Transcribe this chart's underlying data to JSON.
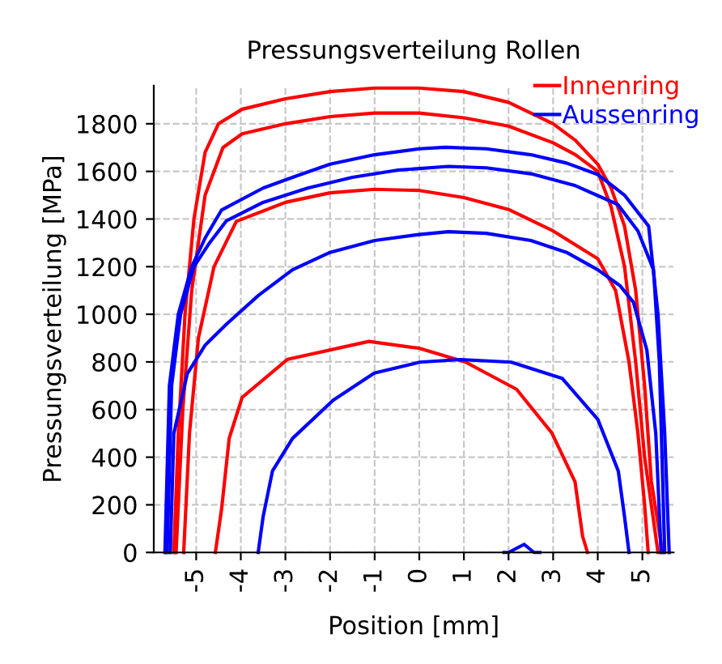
{
  "chart_data": {
    "type": "line",
    "title": "Pressungsverteilung Rollen",
    "xlabel": "Position [mm]",
    "ylabel": "Pressungsverteilung [MPa]",
    "xlim": [
      -5.95,
      5.7
    ],
    "ylim": [
      0,
      1960
    ],
    "xticks": [
      -5,
      -4,
      -3,
      -2,
      -1,
      0,
      1,
      2,
      3,
      4,
      5
    ],
    "yticks": [
      0,
      200,
      400,
      600,
      800,
      1000,
      1200,
      1400,
      1600,
      1800
    ],
    "grid": true,
    "legend": "top right",
    "series": [
      {
        "name": "Innenring",
        "color": "#ff0000",
        "x": [
          -5.5,
          -5.4,
          -5.25,
          -5.05,
          -4.8,
          -4.5,
          -3.97,
          -3,
          -2,
          -1,
          0,
          1,
          2,
          3,
          3.5,
          4.0,
          4.3,
          4.6,
          4.85,
          5.05,
          5.2,
          5.45
        ],
        "values": [
          0,
          500,
          1000,
          1400,
          1680,
          1800,
          1861,
          1905,
          1935,
          1950,
          1950,
          1935,
          1890,
          1800,
          1730,
          1630,
          1530,
          1370,
          1100,
          700,
          300,
          0
        ]
      },
      {
        "color": "#ff0000",
        "x": [
          -5.45,
          -5.3,
          -5.1,
          -4.8,
          -4.4,
          -3.97,
          -3,
          -2,
          -1,
          0,
          1,
          2,
          3,
          3.5,
          4.0,
          4.3,
          4.6,
          4.85,
          5.05,
          5.35
        ],
        "values": [
          0,
          600,
          1100,
          1500,
          1700,
          1758,
          1800,
          1830,
          1845,
          1845,
          1825,
          1790,
          1720,
          1670,
          1600,
          1450,
          1200,
          800,
          400,
          0
        ]
      },
      {
        "color": "#ff0000",
        "x": [
          -5.28,
          -5.15,
          -4.95,
          -4.6,
          -4.1,
          -3,
          -2,
          -1,
          0,
          1,
          2,
          3,
          4.0,
          4.4,
          4.7,
          4.9,
          5.05,
          5.13
        ],
        "values": [
          0,
          500,
          900,
          1200,
          1390,
          1470,
          1510,
          1525,
          1520,
          1490,
          1440,
          1350,
          1233,
          1100,
          800,
          500,
          200,
          0
        ]
      },
      {
        "color": "#ff0000",
        "x": [
          -4.57,
          -4.43,
          -4.26,
          -3.97,
          -2.95,
          -1.13,
          0.01,
          1.04,
          2.18,
          2.97,
          3.49,
          3.66,
          3.77
        ],
        "values": [
          0,
          183,
          479,
          651,
          811,
          886,
          857,
          799,
          685,
          502,
          297,
          68,
          0
        ]
      },
      {
        "name": "Aussenring",
        "color": "#0000ff",
        "x": [
          -5.7,
          -5.6,
          -5.4,
          -5.1,
          -4.8,
          -4.43,
          -3.5,
          -2.84,
          -2,
          -1,
          0,
          0.58,
          1.5,
          2.5,
          3.3,
          4.0,
          4.6,
          5.14,
          5.35,
          5.5,
          5.6
        ],
        "values": [
          0,
          700,
          1000,
          1200,
          1320,
          1438,
          1530,
          1575,
          1630,
          1670,
          1695,
          1701,
          1695,
          1670,
          1635,
          1587,
          1500,
          1370,
          1000,
          500,
          0
        ]
      },
      {
        "color": "#0000ff",
        "x": [
          -5.65,
          -5.55,
          -5.35,
          -5.05,
          -4.7,
          -4.32,
          -3.5,
          -2.5,
          -1.5,
          -0.5,
          0.65,
          1.5,
          2.5,
          3.5,
          4.45,
          4.9,
          5.25,
          5.38,
          5.5
        ],
        "values": [
          0,
          700,
          1000,
          1200,
          1300,
          1393,
          1470,
          1530,
          1575,
          1605,
          1621,
          1615,
          1590,
          1540,
          1461,
          1350,
          1187,
          800,
          0
        ]
      },
      {
        "color": "#0000ff",
        "x": [
          -5.58,
          -5.5,
          -5.2,
          -4.8,
          -4.32,
          -3.6,
          -2.84,
          -2,
          -1,
          0,
          0.65,
          1.5,
          2.5,
          3.3,
          4.0,
          4.5,
          4.8,
          5.1,
          5.3,
          5.42
        ],
        "values": [
          0,
          500,
          750,
          870,
          959,
          1080,
          1187,
          1260,
          1310,
          1335,
          1347,
          1340,
          1310,
          1260,
          1187,
          1120,
          1050,
          850,
          500,
          0
        ]
      },
      {
        "color": "#0000ff",
        "x": [
          -3.61,
          -3.5,
          -3.29,
          -2.84,
          -1.93,
          -1.01,
          0.01,
          0.92,
          2.06,
          3.2,
          4.0,
          4.46,
          4.6,
          4.7
        ],
        "values": [
          0,
          150,
          342,
          479,
          639,
          753,
          799,
          810,
          799,
          731,
          559,
          342,
          150,
          0
        ]
      },
      {
        "color": "#0000ff",
        "x": [
          1.9,
          2.0,
          2.35,
          2.57,
          2.7
        ],
        "values": [
          0,
          0,
          34,
          0,
          0
        ]
      }
    ]
  }
}
